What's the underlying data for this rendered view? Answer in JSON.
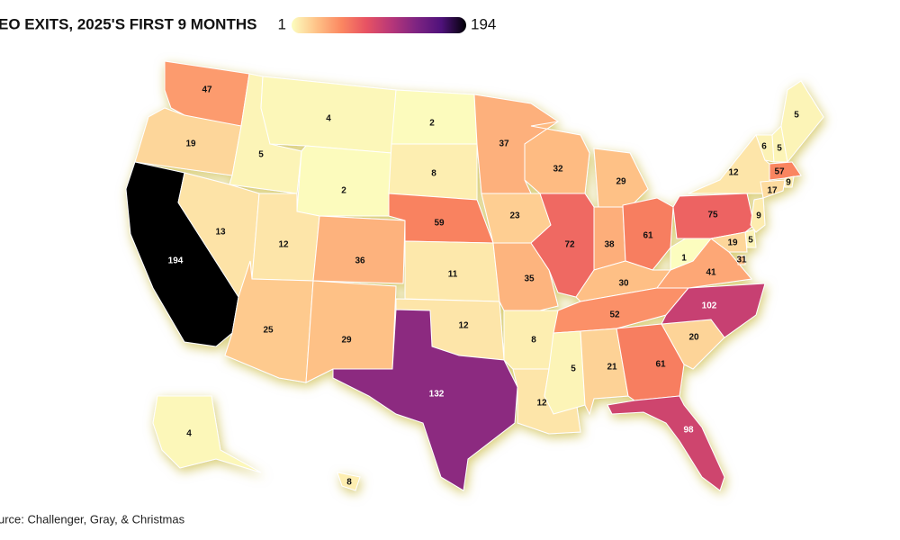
{
  "chart_data": {
    "type": "choropleth",
    "title": "EO EXITS, 2025'S FIRST 9 MONTHS",
    "legend": {
      "min": 1,
      "max": 194
    },
    "colorscale": [
      "#fcfdbf",
      "#fec287",
      "#fb8761",
      "#e75263",
      "#b73779",
      "#7e2482",
      "#4f127b",
      "#000004"
    ],
    "values": [
      47,
      19,
      194,
      5,
      13,
      4,
      2,
      12,
      25,
      36,
      29,
      2,
      8,
      59,
      11,
      12,
      132,
      37,
      23,
      35,
      8,
      12,
      32,
      72,
      29,
      38,
      61,
      30,
      52,
      5,
      21,
      61,
      98,
      20,
      102,
      41,
      1,
      75,
      12,
      6,
      5,
      5,
      57,
      9,
      17,
      9,
      5,
      19,
      31,
      4,
      8
    ],
    "source": "urce: Challenger, Gray, & Christmas"
  }
}
